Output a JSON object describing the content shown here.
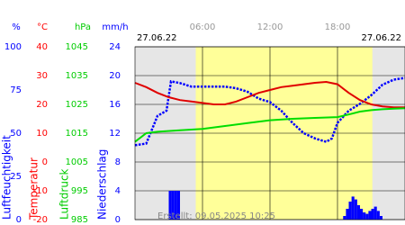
{
  "chart_data": {
    "type": "line",
    "xlim": [
      0,
      24
    ],
    "xticks": [
      {
        "value": 6,
        "label": "06:00"
      },
      {
        "value": 12,
        "label": "12:00"
      },
      {
        "value": 18,
        "label": "18:00"
      }
    ],
    "dates": [
      "27.06.22",
      "27.06.22"
    ],
    "footnote": "Erstellt: 09.05.2025 10:25",
    "daylight": [
      5.4,
      21.1
    ],
    "axes": [
      {
        "unit": "%",
        "color": "#0000ff",
        "lim": [
          0,
          100
        ],
        "ticks": [
          0,
          25,
          50,
          75,
          100
        ]
      },
      {
        "unit": "°C",
        "color": "#ff0000",
        "lim": [
          -20,
          40
        ],
        "ticks": [
          -20,
          -10,
          0,
          10,
          20,
          30,
          40
        ]
      },
      {
        "unit": "hPa",
        "color": "#00cc00",
        "lim": [
          985,
          1045
        ],
        "ticks": [
          985,
          995,
          1005,
          1015,
          1025,
          1035,
          1045
        ]
      },
      {
        "unit": "mm/h",
        "color": "#0000ff",
        "lim": [
          0,
          24
        ],
        "ticks": [
          0,
          4,
          8,
          12,
          16,
          20,
          24
        ]
      }
    ],
    "series": [
      {
        "name": "Luftfeuchtigkeit",
        "color": "#0000ff",
        "axis": 0,
        "mark": "dots",
        "x": [
          0,
          1,
          2,
          2.8,
          3.2,
          4,
          5,
          6,
          7,
          8,
          9,
          10,
          11,
          12,
          13,
          14,
          15,
          16,
          17,
          17.5,
          18,
          19,
          20,
          21,
          22,
          23,
          24
        ],
        "values": [
          43,
          44,
          60,
          63,
          80,
          79,
          77,
          77,
          77,
          77,
          76,
          74,
          70,
          68,
          63,
          56,
          50,
          47,
          45,
          47,
          56,
          63,
          67,
          72,
          78,
          81,
          82
        ]
      },
      {
        "name": "Temperatur",
        "color": "#e00000",
        "axis": 1,
        "mark": "line",
        "x": [
          0,
          1,
          2,
          3,
          4,
          5,
          6,
          7,
          8,
          9,
          10,
          11,
          12,
          13,
          14,
          15,
          16,
          17,
          18,
          19,
          20,
          21,
          22,
          23,
          24
        ],
        "values": [
          27.5,
          26,
          24,
          22.5,
          21.5,
          21,
          20.5,
          20,
          20,
          21,
          22.5,
          24,
          25,
          26,
          26.5,
          27,
          27.5,
          27.8,
          27,
          24,
          21.5,
          20,
          19.3,
          19,
          19
        ]
      },
      {
        "name": "Luftdruck",
        "color": "#00dd00",
        "axis": 2,
        "mark": "line",
        "x": [
          0,
          1,
          2,
          4,
          6,
          8,
          10,
          12,
          14,
          16,
          18,
          19,
          20,
          21,
          22,
          23,
          24
        ],
        "values": [
          1012,
          1015,
          1015.5,
          1016,
          1016.5,
          1017.5,
          1018.5,
          1019.5,
          1020,
          1020.3,
          1020.6,
          1021.5,
          1022.5,
          1023,
          1023.3,
          1023.5,
          1023.7
        ]
      },
      {
        "name": "Niederschlag",
        "color": "#0000ff",
        "axis": 3,
        "mark": "bar",
        "x": [
          3,
          3.25,
          3.5,
          3.75,
          18.5,
          18.75,
          19,
          19.25,
          19.5,
          19.75,
          20,
          20.25,
          20.5,
          20.75,
          21,
          21.25,
          21.5,
          21.75
        ],
        "values": [
          4,
          4,
          4,
          4,
          0.5,
          1.5,
          2.5,
          3.2,
          2.8,
          2,
          1.5,
          1,
          0.8,
          1.2,
          1.5,
          1.8,
          1.2,
          0.5
        ]
      }
    ]
  }
}
